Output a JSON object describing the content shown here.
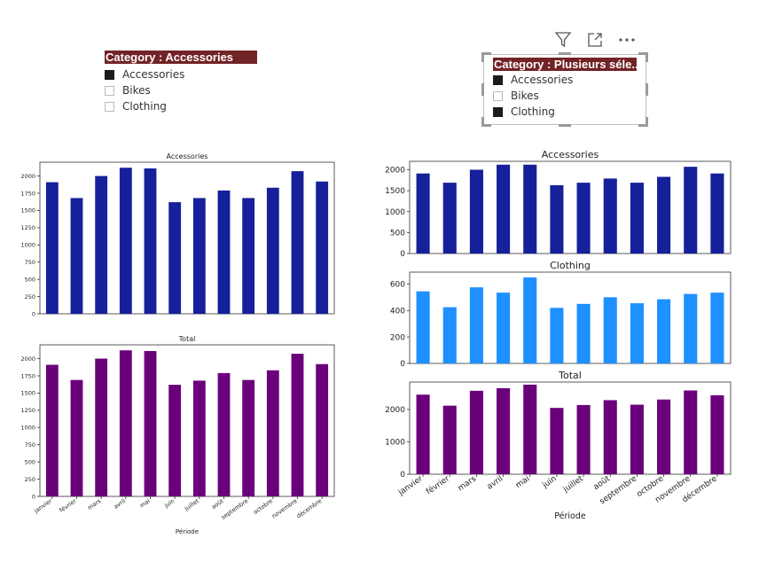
{
  "left_slicer": {
    "header": "Category : Accessories",
    "items": [
      {
        "label": "Accessories",
        "checked": true
      },
      {
        "label": "Bikes",
        "checked": false
      },
      {
        "label": "Clothing",
        "checked": false
      }
    ]
  },
  "right_slicer": {
    "header": "Category : Plusieurs séle...",
    "items": [
      {
        "label": "Accessories",
        "checked": true
      },
      {
        "label": "Bikes",
        "checked": false
      },
      {
        "label": "Clothing",
        "checked": true
      }
    ]
  },
  "toolbar": {
    "icons": [
      "filter-icon",
      "focus-mode-icon",
      "more-options-icon"
    ]
  },
  "chart_data": [
    {
      "id": "left-accessories",
      "type": "bar",
      "title": "Accessories",
      "categories": [
        "janvier",
        "février",
        "mars",
        "avril",
        "mai",
        "juin",
        "juillet",
        "août",
        "septembre",
        "octobre",
        "novembre",
        "décembre"
      ],
      "values": [
        1910,
        1680,
        2000,
        2120,
        2110,
        1620,
        1680,
        1790,
        1680,
        1830,
        2070,
        1920
      ],
      "ylim": [
        0,
        2200
      ],
      "yticks": [
        "0",
        "250",
        "500",
        "750",
        "1000",
        "1250",
        "1500",
        "1750",
        "2000"
      ],
      "color": "#16209a",
      "xlabel": "",
      "show_xticks": false
    },
    {
      "id": "left-total",
      "type": "bar",
      "title": "Total",
      "categories": [
        "janvier",
        "février",
        "mars",
        "avril",
        "mai",
        "juin",
        "juillet",
        "août",
        "septembre",
        "octobre",
        "novembre",
        "décembre"
      ],
      "values": [
        1910,
        1690,
        2000,
        2120,
        2110,
        1620,
        1680,
        1790,
        1690,
        1830,
        2070,
        1920
      ],
      "ylim": [
        0,
        2200
      ],
      "yticks": [
        "0",
        "250",
        "500",
        "750",
        "1000",
        "1250",
        "1500",
        "1750",
        "2000"
      ],
      "color": "#6a007a",
      "xlabel": "Période",
      "show_xticks": true
    },
    {
      "id": "right-accessories",
      "type": "bar",
      "title": "Accessories",
      "categories": [
        "janvier",
        "février",
        "mars",
        "avril",
        "mai",
        "juin",
        "juillet",
        "août",
        "septembre",
        "octobre",
        "novembre",
        "décembre"
      ],
      "values": [
        1910,
        1690,
        2000,
        2120,
        2120,
        1630,
        1690,
        1790,
        1690,
        1830,
        2070,
        1910
      ],
      "ylim": [
        0,
        2200
      ],
      "yticks": [
        "0",
        "500",
        "1000",
        "1500",
        "2000"
      ],
      "color": "#16209a",
      "xlabel": "",
      "show_xticks": false
    },
    {
      "id": "right-clothing",
      "type": "bar",
      "title": "Clothing",
      "categories": [
        "janvier",
        "février",
        "mars",
        "avril",
        "mai",
        "juin",
        "juillet",
        "août",
        "septembre",
        "octobre",
        "novembre",
        "décembre"
      ],
      "values": [
        545,
        425,
        575,
        535,
        650,
        420,
        450,
        500,
        455,
        485,
        525,
        535
      ],
      "ylim": [
        0,
        690
      ],
      "yticks": [
        "0",
        "200",
        "400",
        "600"
      ],
      "color": "#1e90ff",
      "xlabel": "",
      "show_xticks": false
    },
    {
      "id": "right-total",
      "type": "bar",
      "title": "Total",
      "categories": [
        "janvier",
        "février",
        "mars",
        "avril",
        "mai",
        "juin",
        "juillet",
        "août",
        "septembre",
        "octobre",
        "novembre",
        "décembre"
      ],
      "values": [
        2460,
        2120,
        2580,
        2660,
        2770,
        2050,
        2140,
        2290,
        2150,
        2310,
        2590,
        2440
      ],
      "ylim": [
        0,
        2850
      ],
      "yticks": [
        "0",
        "1000",
        "2000"
      ],
      "color": "#6a007a",
      "xlabel": "Période",
      "show_xticks": true
    }
  ]
}
